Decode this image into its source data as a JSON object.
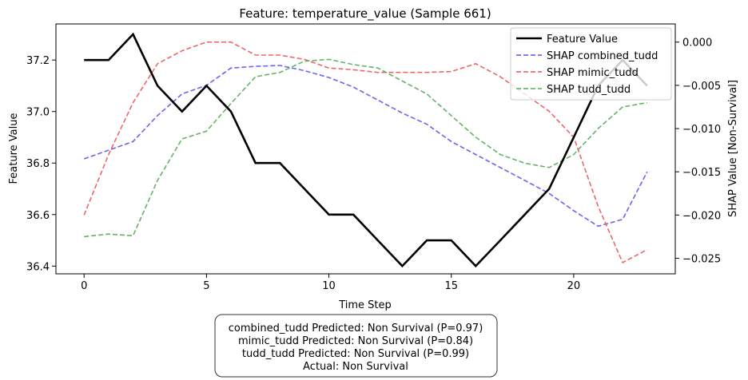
{
  "chart_data": {
    "type": "line",
    "title": "Feature: temperature_value (Sample 661)",
    "xlabel": "Time Step",
    "ylabel": "Feature Value",
    "y2label": "SHAP Value [Non-Survival]",
    "xlim": [
      -1.15,
      24.15
    ],
    "ylim": [
      36.37,
      37.34
    ],
    "y2lim": [
      -0.0268,
      0.0021
    ],
    "xticks": [
      0,
      5,
      10,
      15,
      20
    ],
    "yticks": [
      36.4,
      36.6,
      36.8,
      37.0,
      37.2
    ],
    "yticklabels": [
      "36.4",
      "36.6",
      "36.8",
      "37.0",
      "37.2"
    ],
    "y2ticks": [
      0.0,
      -0.005,
      -0.01,
      -0.015,
      -0.02,
      -0.025
    ],
    "y2ticklabels": [
      "0.000",
      "−0.005",
      "−0.010",
      "−0.015",
      "−0.020",
      "−0.025"
    ],
    "legend_position": "top-right",
    "x": [
      0,
      1,
      2,
      3,
      4,
      5,
      6,
      7,
      8,
      9,
      10,
      11,
      12,
      13,
      14,
      15,
      16,
      17,
      18,
      19,
      20,
      21,
      22,
      23
    ],
    "series": [
      {
        "name": "Feature Value",
        "axis": "left",
        "color": "#000000",
        "style": "solid",
        "values": [
          37.2,
          37.2,
          37.3,
          37.1,
          37.0,
          37.1,
          37.0,
          36.8,
          36.8,
          36.7,
          36.6,
          36.6,
          36.5,
          36.4,
          36.5,
          36.5,
          36.4,
          36.5,
          36.6,
          36.7,
          36.9,
          37.1,
          37.2,
          37.1
        ]
      },
      {
        "name": "SHAP combined_tudd",
        "axis": "right",
        "color": "#5555ee",
        "style": "dashed",
        "values": [
          -0.0135,
          -0.0125,
          -0.0115,
          -0.0085,
          -0.006,
          -0.005,
          -0.003,
          -0.0028,
          -0.0027,
          -0.0033,
          -0.0041,
          -0.0052,
          -0.0067,
          -0.0082,
          -0.0095,
          -0.0115,
          -0.013,
          -0.0145,
          -0.016,
          -0.0175,
          -0.0195,
          -0.0213,
          -0.0205,
          -0.015
        ]
      },
      {
        "name": "SHAP mimic_tudd",
        "axis": "right",
        "color": "#ee5555",
        "style": "dashed",
        "values": [
          -0.02,
          -0.013,
          -0.007,
          -0.0025,
          -0.001,
          0.0,
          0.0,
          -0.0015,
          -0.0015,
          -0.002,
          -0.003,
          -0.0032,
          -0.0035,
          -0.0035,
          -0.0035,
          -0.0034,
          -0.0025,
          -0.004,
          -0.006,
          -0.008,
          -0.011,
          -0.019,
          -0.0255,
          -0.024
        ]
      },
      {
        "name": "SHAP tudd_tudd",
        "axis": "right",
        "color": "#55aa55",
        "style": "dashed",
        "values": [
          -0.0225,
          -0.0222,
          -0.0224,
          -0.016,
          -0.0112,
          -0.0103,
          -0.0071,
          -0.004,
          -0.0035,
          -0.0022,
          -0.002,
          -0.0026,
          -0.003,
          -0.0045,
          -0.006,
          -0.0085,
          -0.011,
          -0.013,
          -0.014,
          -0.0145,
          -0.013,
          -0.01,
          -0.0075,
          -0.007
        ]
      }
    ]
  },
  "annotation": {
    "lines": [
      "combined_tudd Predicted: Non Survival (P=0.97)",
      "mimic_tudd Predicted: Non Survival (P=0.84)",
      "tudd_tudd Predicted: Non Survival (P=0.99)",
      "Actual: Non Survival"
    ]
  }
}
